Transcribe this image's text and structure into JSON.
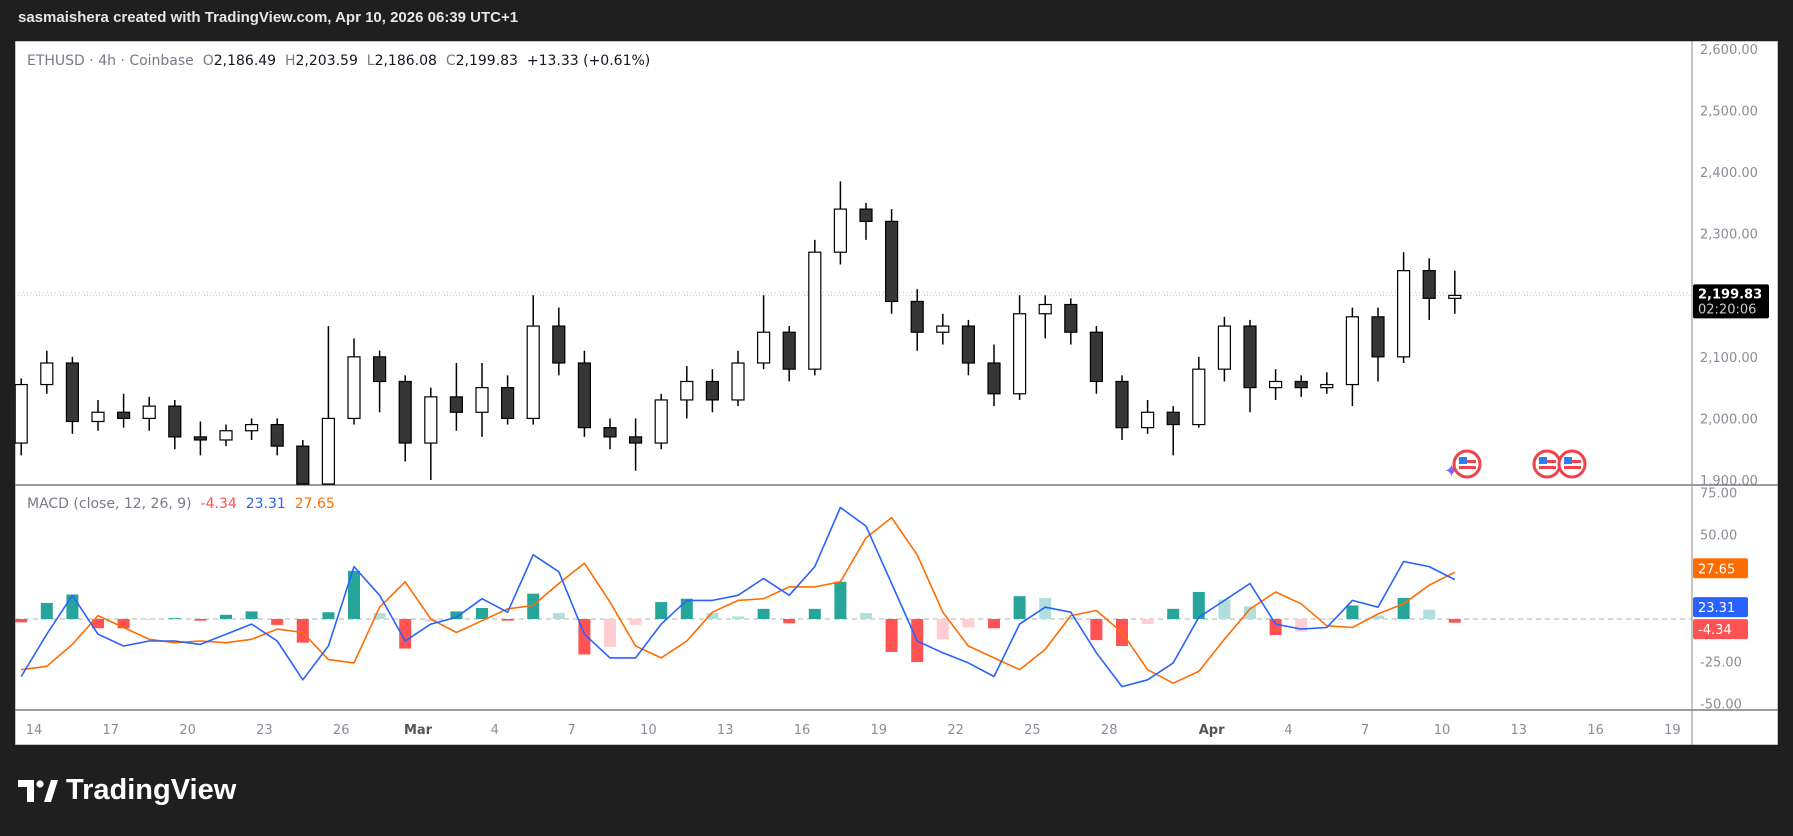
{
  "header": {
    "caption": "sasmaishera created with TradingView.com, Apr 10, 2026 06:39 UTC+1"
  },
  "legend": {
    "symbol": "ETHUSD · 4h · Coinbase",
    "o_label": "O",
    "open": "2,186.49",
    "h_label": "H",
    "high": "2,203.59",
    "l_label": "L",
    "low": "2,186.08",
    "c_label": "C",
    "close": "2,199.83",
    "change": "+13.33 (+0.61%)"
  },
  "macd_legend": {
    "title": "MACD (close, 12, 26, 9)",
    "hist": "-4.34",
    "macd": "23.31",
    "signal": "27.65"
  },
  "price_axis": {
    "ticks": [
      "2,600.00",
      "2,500.00",
      "2,400.00",
      "2,300.00",
      "2,100.00",
      "2,000.00",
      "1,900.00"
    ],
    "last_price": "2,199.83",
    "countdown": "02:20:06"
  },
  "macd_axis": {
    "ticks": [
      "75.00",
      "50.00",
      "-25.00",
      "-50.00"
    ],
    "macd_label": "23.31",
    "signal_label": "27.65",
    "hist_label": "-4.34"
  },
  "time_axis": {
    "labels": [
      "14",
      "17",
      "20",
      "23",
      "26",
      "Mar",
      "4",
      "7",
      "10",
      "13",
      "16",
      "19",
      "22",
      "25",
      "28",
      "Apr",
      "4",
      "7",
      "10",
      "13",
      "16",
      "19"
    ]
  },
  "logo": {
    "text": "TradingView"
  },
  "colors": {
    "macd": "#2962ff",
    "signal": "#ff6d00",
    "hist_up_strong": "#26a69a",
    "hist_up_weak": "#b2dfdb",
    "hist_down_strong": "#ff5252",
    "hist_down_weak": "#ffcdd2",
    "last_price_line": "#f5e000"
  },
  "events": [
    "us-flag-icon",
    "us-flag-icon",
    "us-flag-icon"
  ],
  "chart_data": {
    "type": "candlestick",
    "symbol": "ETHUSD",
    "ylim": [
      1900,
      2600
    ],
    "columns": [
      "date",
      "open",
      "high",
      "low",
      "close"
    ],
    "candles": [
      [
        "Feb 13",
        1960,
        2065,
        1940,
        2055
      ],
      [
        "Feb 14",
        2055,
        2110,
        2040,
        2090
      ],
      [
        "Feb 15",
        2090,
        2100,
        1975,
        1995
      ],
      [
        "Feb 16",
        1995,
        2030,
        1980,
        2010
      ],
      [
        "Feb 17",
        2010,
        2040,
        1985,
        2000
      ],
      [
        "Feb 18",
        2000,
        2035,
        1980,
        2020
      ],
      [
        "Feb 19",
        2020,
        2030,
        1950,
        1970
      ],
      [
        "Feb 20",
        1970,
        1995,
        1940,
        1965
      ],
      [
        "Feb 21",
        1965,
        1990,
        1955,
        1980
      ],
      [
        "Feb 22",
        1980,
        2000,
        1965,
        1990
      ],
      [
        "Feb 23",
        1990,
        2000,
        1940,
        1955
      ],
      [
        "Feb 24",
        1955,
        1965,
        1870,
        1885
      ],
      [
        "Feb 25",
        1885,
        2150,
        1860,
        2000
      ],
      [
        "Feb 26",
        2000,
        2130,
        1990,
        2100
      ],
      [
        "Feb 27",
        2100,
        2110,
        2010,
        2060
      ],
      [
        "Feb 28",
        2060,
        2070,
        1930,
        1960
      ],
      [
        "Mar 1",
        1960,
        2050,
        1900,
        2035
      ],
      [
        "Mar 2",
        2035,
        2090,
        1980,
        2010
      ],
      [
        "Mar 3",
        2010,
        2090,
        1970,
        2050
      ],
      [
        "Mar 4",
        2050,
        2070,
        1990,
        2000
      ],
      [
        "Mar 5",
        2000,
        2200,
        1990,
        2150
      ],
      [
        "Mar 6",
        2150,
        2180,
        2070,
        2090
      ],
      [
        "Mar 7",
        2090,
        2110,
        1970,
        1985
      ],
      [
        "Mar 8",
        1985,
        2000,
        1950,
        1970
      ],
      [
        "Mar 9",
        1970,
        2000,
        1915,
        1960
      ],
      [
        "Mar 10",
        1960,
        2040,
        1950,
        2030
      ],
      [
        "Mar 11",
        2030,
        2085,
        2000,
        2060
      ],
      [
        "Mar 12",
        2060,
        2080,
        2010,
        2030
      ],
      [
        "Mar 13",
        2030,
        2110,
        2020,
        2090
      ],
      [
        "Mar 14",
        2090,
        2200,
        2080,
        2140
      ],
      [
        "Mar 15",
        2140,
        2150,
        2060,
        2080
      ],
      [
        "Mar 16",
        2080,
        2290,
        2070,
        2270
      ],
      [
        "Mar 17",
        2270,
        2385,
        2250,
        2340
      ],
      [
        "Mar 18",
        2340,
        2350,
        2290,
        2320
      ],
      [
        "Mar 19",
        2320,
        2340,
        2170,
        2190
      ],
      [
        "Mar 20",
        2190,
        2210,
        2110,
        2140
      ],
      [
        "Mar 21",
        2140,
        2170,
        2120,
        2150
      ],
      [
        "Mar 22",
        2150,
        2160,
        2070,
        2090
      ],
      [
        "Mar 23",
        2090,
        2120,
        2020,
        2040
      ],
      [
        "Mar 24",
        2040,
        2200,
        2030,
        2170
      ],
      [
        "Mar 25",
        2170,
        2200,
        2130,
        2185
      ],
      [
        "Mar 26",
        2185,
        2195,
        2120,
        2140
      ],
      [
        "Mar 27",
        2140,
        2150,
        2040,
        2060
      ],
      [
        "Mar 28",
        2060,
        2070,
        1965,
        1985
      ],
      [
        "Mar 29",
        1985,
        2030,
        1975,
        2010
      ],
      [
        "Mar 30",
        2010,
        2020,
        1940,
        1990
      ],
      [
        "Mar 31",
        1990,
        2100,
        1985,
        2080
      ],
      [
        "Apr 1",
        2080,
        2165,
        2060,
        2150
      ],
      [
        "Apr 2",
        2150,
        2160,
        2010,
        2050
      ],
      [
        "Apr 3",
        2050,
        2080,
        2030,
        2060
      ],
      [
        "Apr 4",
        2060,
        2070,
        2035,
        2050
      ],
      [
        "Apr 5",
        2050,
        2075,
        2040,
        2055
      ],
      [
        "Apr 6",
        2055,
        2180,
        2020,
        2165
      ],
      [
        "Apr 7",
        2165,
        2180,
        2060,
        2100
      ],
      [
        "Apr 8",
        2100,
        2270,
        2090,
        2240
      ],
      [
        "Apr 9",
        2240,
        2260,
        2160,
        2195
      ],
      [
        "Apr 10",
        2195,
        2240,
        2170,
        2199.83
      ]
    ],
    "last_price": 2199.83,
    "macd": {
      "ylim": [
        -50,
        75
      ],
      "macd": [
        -34,
        -9,
        14,
        -9,
        -16,
        -13,
        -13,
        -15,
        -9,
        -3,
        -13,
        -36,
        -16,
        31,
        14,
        -13,
        -3,
        1,
        12,
        4,
        38,
        28,
        -9,
        -23,
        -23,
        -3,
        11,
        11,
        14,
        24,
        14,
        31,
        66,
        55,
        21,
        -13,
        -20,
        -26,
        -34,
        -3,
        7,
        4,
        -20,
        -40,
        -36,
        -26,
        1,
        11,
        21,
        -3,
        -6,
        -5,
        11,
        7,
        34,
        31,
        23.31
      ],
      "signal": [
        -30,
        -28,
        -15,
        2,
        -5,
        -12,
        -14,
        -13,
        -14,
        -12,
        -6,
        -8,
        -24,
        -26,
        7,
        22,
        0,
        -8,
        -1,
        6,
        8,
        21,
        33,
        10,
        -16,
        -23,
        -13,
        4,
        11,
        12,
        19,
        19,
        22,
        48,
        60,
        38,
        4,
        -16,
        -23,
        -30,
        -18,
        2,
        5,
        -8,
        -30,
        -38,
        -31,
        -12,
        6,
        16,
        9,
        -4,
        -5,
        3,
        9,
        20,
        27.65
      ]
    }
  }
}
